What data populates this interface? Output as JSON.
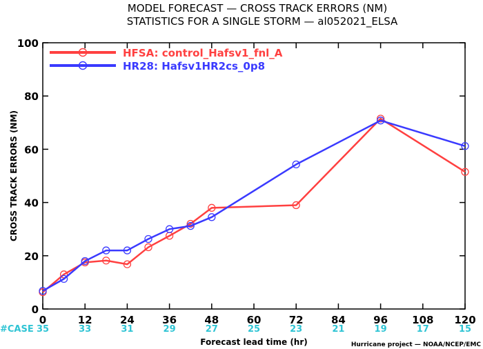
{
  "title": {
    "line1": "MODEL FORECAST — CROSS TRACK ERRORS (NM)",
    "line2": "STATISTICS FOR A SINGLE STORM — al052021_ELSA"
  },
  "credit": "Hurricane project — NOAA/NCEP/EMC",
  "case_row": {
    "label": "#CASE",
    "color": "#2fc4d4"
  },
  "chart_data": {
    "type": "line",
    "xlabel": "Forecast lead time (hr)",
    "ylabel": "CROSS TRACK ERRORS (NM)",
    "xlim": [
      0,
      120
    ],
    "ylim": [
      0,
      100
    ],
    "xticks": [
      0,
      12,
      24,
      36,
      48,
      60,
      72,
      84,
      96,
      108,
      120
    ],
    "yticks": [
      0,
      20,
      40,
      60,
      80,
      100
    ],
    "grid": false,
    "legend_position": "top-left",
    "series": [
      {
        "name": "HFSA: control_Hafsv1_fnl_A",
        "color": "#ff4040",
        "points": [
          [
            0,
            6.3
          ],
          [
            6,
            13.0
          ],
          [
            12,
            17.5
          ],
          [
            18,
            18.2
          ],
          [
            24,
            16.8
          ],
          [
            30,
            23.2
          ],
          [
            36,
            27.5
          ],
          [
            42,
            32.0
          ],
          [
            48,
            38.0
          ],
          [
            72,
            39.0
          ],
          [
            96,
            71.5
          ],
          [
            120,
            51.5
          ]
        ]
      },
      {
        "name": "HR28: Hafsv1HR2cs_0p8",
        "color": "#3a3aff",
        "points": [
          [
            0,
            6.8
          ],
          [
            6,
            11.3
          ],
          [
            12,
            18.0
          ],
          [
            18,
            22.0
          ],
          [
            24,
            22.0
          ],
          [
            30,
            26.3
          ],
          [
            36,
            30.0
          ],
          [
            42,
            31.2
          ],
          [
            48,
            34.5
          ],
          [
            72,
            54.3
          ],
          [
            96,
            70.8
          ],
          [
            120,
            61.2
          ]
        ]
      }
    ],
    "cases": [
      {
        "x": 0,
        "n": "35"
      },
      {
        "x": 12,
        "n": "33"
      },
      {
        "x": 24,
        "n": "31"
      },
      {
        "x": 36,
        "n": "29"
      },
      {
        "x": 48,
        "n": "27"
      },
      {
        "x": 60,
        "n": "25"
      },
      {
        "x": 72,
        "n": "23"
      },
      {
        "x": 84,
        "n": "21"
      },
      {
        "x": 96,
        "n": "19"
      },
      {
        "x": 108,
        "n": "17"
      },
      {
        "x": 120,
        "n": "15"
      }
    ]
  }
}
